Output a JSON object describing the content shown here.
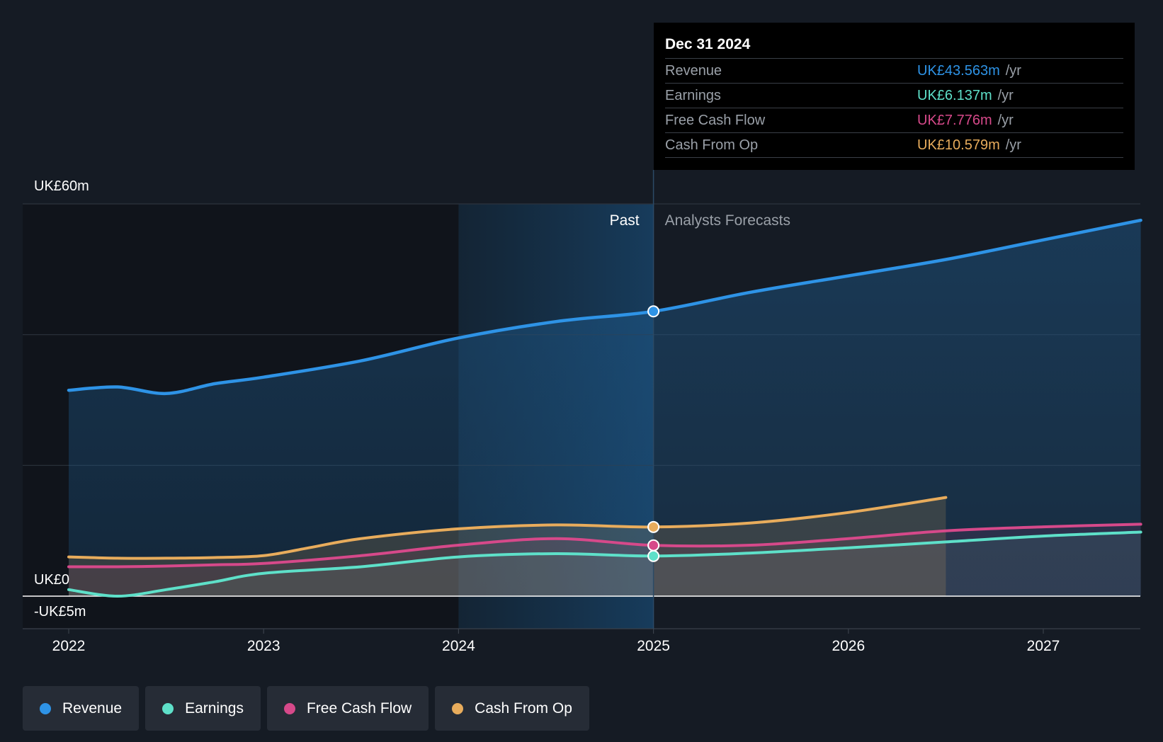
{
  "tooltip": {
    "date": "Dec 31 2024",
    "rows": [
      {
        "label": "Revenue",
        "value": "UK£43.563m",
        "unit": "/yr",
        "color": "#2e93e6"
      },
      {
        "label": "Earnings",
        "value": "UK£6.137m",
        "unit": "/yr",
        "color": "#5ee0c9"
      },
      {
        "label": "Free Cash Flow",
        "value": "UK£7.776m",
        "unit": "/yr",
        "color": "#d6498a"
      },
      {
        "label": "Cash From Op",
        "value": "UK£10.579m",
        "unit": "/yr",
        "color": "#e8ac5c"
      }
    ]
  },
  "regions": {
    "past": "Past",
    "forecast": "Analysts Forecasts"
  },
  "legend": [
    {
      "label": "Revenue",
      "color": "#2e93e6"
    },
    {
      "label": "Earnings",
      "color": "#5ee0c9"
    },
    {
      "label": "Free Cash Flow",
      "color": "#d6498a"
    },
    {
      "label": "Cash From Op",
      "color": "#e8ac5c"
    }
  ],
  "chart_data": {
    "type": "line",
    "y_tick_labels": [
      "UK£60m",
      "UK£0",
      "-UK£5m"
    ],
    "x_tick_labels": [
      "2022",
      "2023",
      "2024",
      "2025",
      "2026",
      "2027"
    ],
    "ylim": [
      -5,
      60
    ],
    "xlim": [
      2021.77,
      2027.5
    ],
    "grid": true,
    "past_forecast_split": 2025.0,
    "highlight_band": [
      2024.0,
      2025.0
    ],
    "series": [
      {
        "name": "Revenue",
        "color": "#2e93e6",
        "x": [
          2022.0,
          2022.25,
          2022.5,
          2022.75,
          2023.0,
          2023.5,
          2024.0,
          2024.5,
          2025.0,
          2025.5,
          2026.0,
          2026.5,
          2027.0,
          2027.5
        ],
        "y": [
          31.5,
          32.0,
          31.0,
          32.5,
          33.5,
          36.0,
          39.5,
          42.0,
          43.563,
          46.5,
          49.0,
          51.5,
          54.5,
          57.5
        ]
      },
      {
        "name": "Earnings",
        "color": "#5ee0c9",
        "x": [
          2022.0,
          2022.25,
          2022.5,
          2022.75,
          2023.0,
          2023.5,
          2024.0,
          2024.5,
          2025.0,
          2025.5,
          2026.0,
          2026.5,
          2027.0,
          2027.5
        ],
        "y": [
          1.0,
          0.0,
          1.0,
          2.2,
          3.5,
          4.5,
          6.0,
          6.5,
          6.137,
          6.6,
          7.4,
          8.3,
          9.2,
          9.8
        ]
      },
      {
        "name": "Free Cash Flow",
        "color": "#d6498a",
        "x": [
          2022.0,
          2022.25,
          2022.5,
          2022.75,
          2023.0,
          2023.5,
          2024.0,
          2024.5,
          2025.0,
          2025.5,
          2026.0,
          2026.5,
          2027.0,
          2027.5
        ],
        "y": [
          4.5,
          4.5,
          4.6,
          4.8,
          5.0,
          6.2,
          7.8,
          8.8,
          7.776,
          7.8,
          8.8,
          10.0,
          10.6,
          11.0
        ]
      },
      {
        "name": "Cash From Op",
        "color": "#e8ac5c",
        "x": [
          2022.0,
          2022.25,
          2022.5,
          2022.75,
          2023.0,
          2023.25,
          2023.5,
          2024.0,
          2024.5,
          2025.0,
          2025.5,
          2026.0,
          2026.5
        ],
        "y": [
          6.0,
          5.8,
          5.8,
          5.9,
          6.2,
          7.5,
          8.8,
          10.3,
          10.9,
          10.579,
          11.2,
          12.8,
          15.1
        ]
      }
    ],
    "highlight_x": 2025.0
  }
}
